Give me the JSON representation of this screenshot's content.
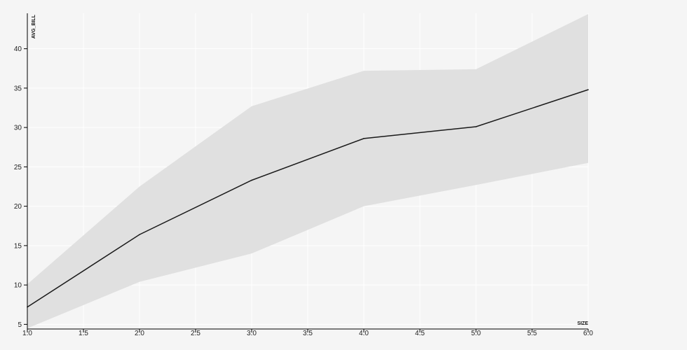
{
  "chart_data": {
    "type": "line",
    "xlabel": "SIZE",
    "ylabel": "AVG_BILL",
    "xlim": [
      1.0,
      6.0
    ],
    "ylim": [
      4.5,
      44.5
    ],
    "x_ticks": [
      "1.0",
      "1.5",
      "2.0",
      "2.5",
      "3.0",
      "3.5",
      "4.0",
      "4.5",
      "5.0",
      "5.5",
      "6.0"
    ],
    "y_ticks": [
      "5",
      "10",
      "15",
      "20",
      "25",
      "30",
      "35",
      "40"
    ],
    "grid": true,
    "legend": "none",
    "series": [
      {
        "x": [
          1,
          2,
          3,
          4,
          5,
          6
        ],
        "values": [
          7.2,
          16.4,
          23.3,
          28.6,
          30.1,
          34.8
        ],
        "band_low": [
          4.5,
          10.4,
          14.0,
          20.0,
          22.7,
          25.5
        ],
        "band_high": [
          10.1,
          22.5,
          32.7,
          37.2,
          37.4,
          44.4
        ]
      }
    ],
    "colors": {
      "line": "#1a1a1a",
      "band": "#e0e0e0",
      "grid": "#ffffff",
      "axis": "#000000",
      "background": "#f5f5f5"
    }
  }
}
